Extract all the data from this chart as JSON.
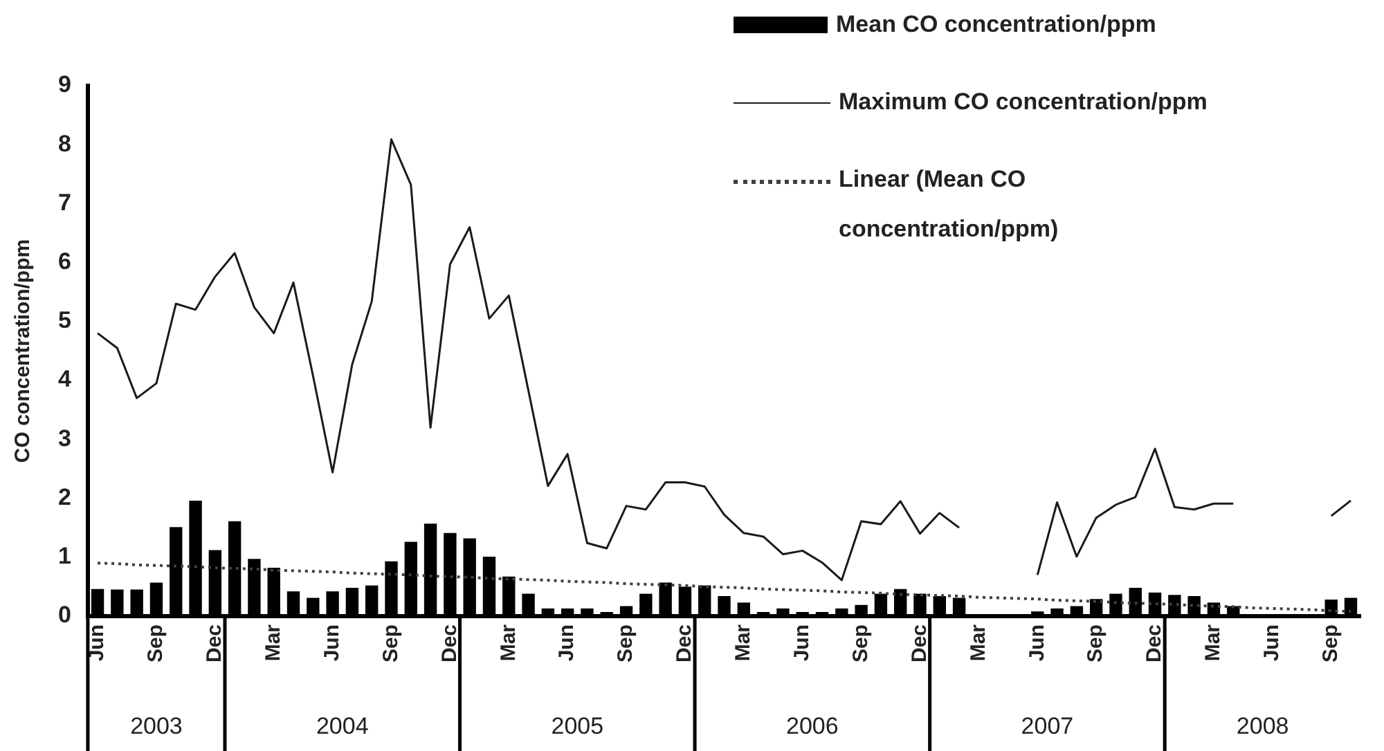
{
  "chart_data": {
    "type": "bar",
    "ylabel": "CO concentration/ppm",
    "categories": [
      "Jun",
      null,
      null,
      "Sep",
      null,
      null,
      "Dec",
      null,
      null,
      "Mar",
      null,
      null,
      "Jun",
      null,
      null,
      "Sep",
      null,
      null,
      "Dec",
      null,
      null,
      "Mar",
      null,
      null,
      "Jun",
      null,
      null,
      "Sep",
      null,
      null,
      "Dec",
      null,
      null,
      "Mar",
      null,
      null,
      "Jun",
      null,
      null,
      "Sep",
      null,
      null,
      "Dec",
      null,
      null,
      "Mar",
      null,
      null,
      "Jun",
      null,
      null,
      "Sep",
      null,
      null,
      "Dec",
      null,
      null,
      "Mar",
      null,
      null,
      "Jun",
      null,
      null,
      "Sep",
      null
    ],
    "series": [
      {
        "name": "Mean CO concentration/ppm",
        "color": "#000000",
        "values": [
          0.46,
          0.45,
          0.45,
          0.57,
          1.51,
          1.96,
          1.12,
          1.61,
          0.97,
          0.82,
          0.42,
          0.31,
          0.42,
          0.48,
          0.52,
          0.93,
          1.26,
          1.57,
          1.41,
          1.32,
          1.01,
          0.67,
          0.38,
          0.13,
          0.13,
          0.13,
          0.07,
          0.17,
          0.38,
          0.57,
          0.5,
          0.52,
          0.34,
          0.23,
          0.07,
          0.13,
          0.07,
          0.07,
          0.13,
          0.19,
          0.38,
          0.46,
          0.38,
          0.34,
          0.31,
          null,
          null,
          null,
          0.08,
          0.13,
          0.17,
          0.29,
          0.38,
          0.48,
          0.4,
          0.36,
          0.34,
          0.23,
          0.17,
          null,
          null,
          null,
          null,
          0.28,
          0.31
        ]
      },
      {
        "name": "Maximum CO concentration/ppm",
        "type": "line",
        "color": "#1a1a1a",
        "line_style": "solid",
        "values": [
          4.8,
          4.55,
          3.7,
          3.95,
          5.3,
          5.2,
          5.76,
          6.16,
          5.24,
          4.8,
          5.66,
          4.08,
          2.44,
          4.27,
          5.34,
          8.09,
          7.32,
          3.2,
          5.97,
          6.6,
          5.05,
          5.44,
          3.83,
          2.21,
          2.75,
          1.24,
          1.15,
          1.87,
          1.81,
          2.27,
          2.27,
          2.2,
          1.72,
          1.41,
          1.35,
          1.05,
          1.11,
          0.91,
          0.61,
          1.61,
          1.56,
          1.95,
          1.4,
          1.75,
          1.5,
          null,
          null,
          null,
          0.7,
          1.93,
          1.01,
          1.67,
          1.89,
          2.02,
          2.84,
          1.85,
          1.81,
          1.91,
          1.91,
          null,
          null,
          null,
          null,
          1.7,
          1.96
        ]
      },
      {
        "name": "Linear (Mean CO concentration/ppm)",
        "type": "line",
        "color": "#404040",
        "line_style": "dotted",
        "values": [
          0.9,
          0.89,
          0.87,
          0.86,
          0.85,
          0.84,
          0.82,
          0.81,
          0.8,
          0.78,
          0.77,
          0.76,
          0.75,
          0.73,
          0.72,
          0.71,
          0.7,
          0.68,
          0.67,
          0.66,
          0.64,
          0.63,
          0.62,
          0.61,
          0.59,
          0.58,
          0.57,
          0.55,
          0.54,
          0.53,
          0.52,
          0.5,
          0.49,
          0.48,
          0.46,
          0.45,
          0.44,
          0.43,
          0.41,
          0.4,
          0.39,
          0.37,
          0.36,
          0.35,
          0.34,
          0.32,
          0.31,
          0.3,
          0.29,
          0.27,
          0.26,
          0.25,
          0.23,
          0.22,
          0.21,
          0.2,
          0.18,
          0.17,
          0.16,
          0.14,
          0.13,
          0.12,
          0.11,
          0.09,
          0.08
        ]
      }
    ],
    "ylim": [
      0,
      9
    ],
    "yticks": [
      0,
      1,
      2,
      3,
      4,
      5,
      6,
      7,
      8,
      9
    ],
    "annotations": [
      "2003",
      "2004",
      "2005",
      "2006",
      "2007",
      "2008"
    ],
    "grid": false,
    "legend": "top right",
    "marker": "none"
  }
}
